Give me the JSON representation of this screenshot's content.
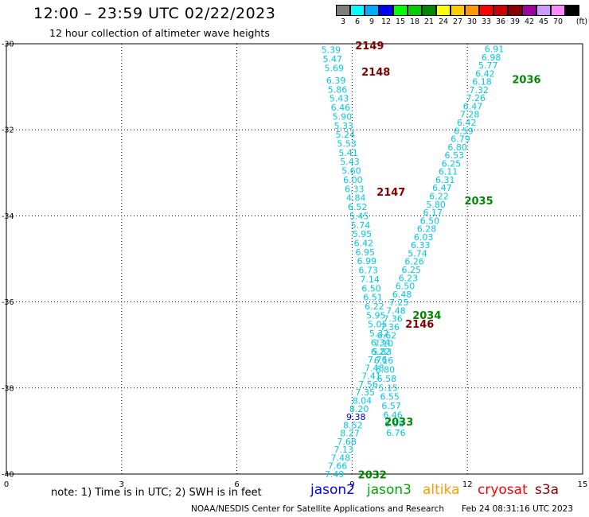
{
  "header": {
    "title": "12:00 – 23:59 UTC 02/22/2023",
    "subtitle": "12 hour collection of altimeter wave heights"
  },
  "legend": {
    "unit": "(ft)",
    "items": [
      {
        "label": "3",
        "color": "#7f7f7f"
      },
      {
        "label": "6",
        "color": "#00ffff"
      },
      {
        "label": "9",
        "color": "#00aaff"
      },
      {
        "label": "12",
        "color": "#0000ff"
      },
      {
        "label": "15",
        "color": "#00ff00"
      },
      {
        "label": "18",
        "color": "#00cc00"
      },
      {
        "label": "21",
        "color": "#008800"
      },
      {
        "label": "24",
        "color": "#ffff00"
      },
      {
        "label": "27",
        "color": "#ffcc00"
      },
      {
        "label": "30",
        "color": "#ff9900"
      },
      {
        "label": "33",
        "color": "#ff0000"
      },
      {
        "label": "36",
        "color": "#cc0000"
      },
      {
        "label": "39",
        "color": "#880000"
      },
      {
        "label": "42",
        "color": "#a000a0"
      },
      {
        "label": "45",
        "color": "#cc99ff"
      },
      {
        "label": "70",
        "color": "#ff88ff"
      },
      {
        "label": "",
        "color": "#000000"
      }
    ]
  },
  "colors": {
    "low_swh": "#00c8e6",
    "mid_swh": "#0000cc",
    "pass_label_green": "#008800",
    "pass_label_darkred": "#800000",
    "grid": "#000000"
  },
  "chart_data": {
    "type": "scatter",
    "title": "12:00 – 23:59 UTC 02/22/2023",
    "xlim": [
      0,
      15
    ],
    "ylim": [
      -40,
      -30
    ],
    "x_ticks": [
      "0",
      "3",
      "6",
      "9",
      "12",
      "15"
    ],
    "y_ticks": [
      "-30",
      "-32",
      "-34",
      "-36",
      "-38",
      "-40"
    ],
    "grid": true,
    "series": [
      {
        "name": "2149",
        "color": "#800000",
        "points": [
          {
            "x": 8.45,
            "y": -30.14,
            "v": "5.39"
          },
          {
            "x": 8.49,
            "y": -30.35,
            "v": "5.47"
          },
          {
            "x": 8.53,
            "y": -30.56,
            "v": "5.69"
          }
        ]
      },
      {
        "name": "2148",
        "color": "#800000",
        "points": [
          {
            "x": 8.58,
            "y": -30.85,
            "v": "6.39"
          },
          {
            "x": 8.62,
            "y": -31.06,
            "v": "5.86"
          },
          {
            "x": 8.66,
            "y": -31.27,
            "v": "5.43"
          },
          {
            "x": 8.7,
            "y": -31.48,
            "v": "6.46"
          },
          {
            "x": 8.74,
            "y": -31.69,
            "v": "5.90"
          },
          {
            "x": 8.78,
            "y": -31.9,
            "v": "5.33"
          },
          {
            "x": 8.82,
            "y": -32.11,
            "v": "5.24"
          },
          {
            "x": 8.86,
            "y": -32.32,
            "v": "5.53"
          },
          {
            "x": 8.9,
            "y": -32.53,
            "v": "5.41"
          },
          {
            "x": 8.94,
            "y": -32.74,
            "v": "5.43"
          },
          {
            "x": 8.98,
            "y": -32.95,
            "v": "5.60"
          },
          {
            "x": 9.02,
            "y": -33.16,
            "v": "6.00"
          },
          {
            "x": 9.06,
            "y": -33.37,
            "v": "6.33"
          },
          {
            "x": 9.1,
            "y": -33.58,
            "v": "4.84"
          }
        ]
      },
      {
        "name": "2147",
        "color": "#800000",
        "points": [
          {
            "x": 9.14,
            "y": -33.79,
            "v": "6.52"
          },
          {
            "x": 9.18,
            "y": -34.0,
            "v": "5.45"
          },
          {
            "x": 9.22,
            "y": -34.21,
            "v": "5.74"
          },
          {
            "x": 9.26,
            "y": -34.42,
            "v": "5.95"
          },
          {
            "x": 9.3,
            "y": -34.63,
            "v": "6.42"
          },
          {
            "x": 9.34,
            "y": -34.84,
            "v": "6.95"
          },
          {
            "x": 9.38,
            "y": -35.05,
            "v": "6.99"
          },
          {
            "x": 9.42,
            "y": -35.26,
            "v": "6.73"
          },
          {
            "x": 9.46,
            "y": -35.47,
            "v": "7.14"
          },
          {
            "x": 9.5,
            "y": -35.68,
            "v": "6.50"
          },
          {
            "x": 9.54,
            "y": -35.89,
            "v": "6.51"
          },
          {
            "x": 9.58,
            "y": -36.1,
            "v": "6.22"
          }
        ]
      },
      {
        "name": "2146",
        "color": "#800000",
        "points": [
          {
            "x": 9.62,
            "y": -36.31,
            "v": "5.95"
          },
          {
            "x": 9.66,
            "y": -36.52,
            "v": "5.05"
          },
          {
            "x": 9.7,
            "y": -36.73,
            "v": "5.32"
          },
          {
            "x": 9.74,
            "y": -36.94,
            "v": "6.34"
          },
          {
            "x": 9.78,
            "y": -37.15,
            "v": "5.83"
          },
          {
            "x": 9.82,
            "y": -37.36,
            "v": "6.16"
          },
          {
            "x": 9.86,
            "y": -37.57,
            "v": "6.80"
          },
          {
            "x": 9.9,
            "y": -37.78,
            "v": "6.58"
          },
          {
            "x": 9.94,
            "y": -37.99,
            "v": "5.15"
          },
          {
            "x": 9.98,
            "y": -38.2,
            "v": "6.55"
          },
          {
            "x": 10.02,
            "y": -38.41,
            "v": "6.57"
          },
          {
            "x": 10.06,
            "y": -38.62,
            "v": "6.46"
          },
          {
            "x": 10.1,
            "y": -38.83,
            "v": "6.98"
          },
          {
            "x": 10.14,
            "y": -39.04,
            "v": "6.76"
          }
        ]
      },
      {
        "name": "2036",
        "color": "#008800",
        "points": [
          {
            "x": 12.7,
            "y": -30.12,
            "v": "6.91"
          },
          {
            "x": 12.62,
            "y": -30.31,
            "v": "6.98"
          },
          {
            "x": 12.54,
            "y": -30.5,
            "v": "5.77"
          },
          {
            "x": 12.46,
            "y": -30.69,
            "v": "6.42"
          },
          {
            "x": 12.38,
            "y": -30.88,
            "v": "6.18"
          },
          {
            "x": 12.3,
            "y": -31.07,
            "v": "7.32"
          },
          {
            "x": 12.22,
            "y": -31.26,
            "v": "7.26"
          },
          {
            "x": 12.14,
            "y": -31.45,
            "v": "6.47"
          },
          {
            "x": 12.06,
            "y": -31.64,
            "v": "7.28"
          },
          {
            "x": 11.98,
            "y": -31.83,
            "v": "6.42"
          },
          {
            "x": 11.9,
            "y": -32.02,
            "v": "6.59"
          },
          {
            "x": 11.82,
            "y": -32.21,
            "v": "6.79"
          },
          {
            "x": 11.74,
            "y": -32.4,
            "v": "6.80"
          },
          {
            "x": 11.66,
            "y": -32.59,
            "v": "6.53"
          },
          {
            "x": 11.58,
            "y": -32.78,
            "v": "6.25"
          },
          {
            "x": 11.5,
            "y": -32.97,
            "v": "6.11"
          },
          {
            "x": 11.42,
            "y": -33.16,
            "v": "6.31"
          },
          {
            "x": 11.34,
            "y": -33.35,
            "v": "6.47"
          }
        ]
      },
      {
        "name": "2035",
        "color": "#008800",
        "points": [
          {
            "x": 11.26,
            "y": -33.54,
            "v": "6.22"
          },
          {
            "x": 11.18,
            "y": -33.73,
            "v": "5.80"
          },
          {
            "x": 11.1,
            "y": -33.92,
            "v": "6.17"
          },
          {
            "x": 11.02,
            "y": -34.11,
            "v": "6.50"
          },
          {
            "x": 10.94,
            "y": -34.3,
            "v": "6.28"
          },
          {
            "x": 10.86,
            "y": -34.49,
            "v": "6.03"
          },
          {
            "x": 10.78,
            "y": -34.68,
            "v": "6.33"
          },
          {
            "x": 10.7,
            "y": -34.87,
            "v": "5.74"
          },
          {
            "x": 10.62,
            "y": -35.06,
            "v": "6.26"
          },
          {
            "x": 10.54,
            "y": -35.25,
            "v": "6.25"
          },
          {
            "x": 10.46,
            "y": -35.44,
            "v": "6.23"
          },
          {
            "x": 10.38,
            "y": -35.63,
            "v": "6.50"
          },
          {
            "x": 10.3,
            "y": -35.82,
            "v": "6.48"
          },
          {
            "x": 10.22,
            "y": -36.01,
            "v": "7.25"
          }
        ]
      },
      {
        "name": "2034",
        "color": "#008800",
        "points": [
          {
            "x": 10.14,
            "y": -36.2,
            "v": "7.48"
          },
          {
            "x": 10.06,
            "y": -36.39,
            "v": "7.36"
          },
          {
            "x": 9.98,
            "y": -36.58,
            "v": "7.36"
          },
          {
            "x": 9.9,
            "y": -36.77,
            "v": "6.62"
          },
          {
            "x": 9.82,
            "y": -36.96,
            "v": "7.10"
          },
          {
            "x": 9.74,
            "y": -37.15,
            "v": "6.22"
          },
          {
            "x": 9.66,
            "y": -37.34,
            "v": "7.76"
          },
          {
            "x": 9.58,
            "y": -37.53,
            "v": "7.48"
          },
          {
            "x": 9.5,
            "y": -37.72,
            "v": "7.41"
          },
          {
            "x": 9.42,
            "y": -37.91,
            "v": "7.56"
          },
          {
            "x": 9.34,
            "y": -38.1,
            "v": "7.35"
          },
          {
            "x": 9.26,
            "y": -38.29,
            "v": "8.04"
          }
        ]
      },
      {
        "name": "2033",
        "color": "#008800",
        "points": [
          {
            "x": 9.18,
            "y": -38.48,
            "v": "8.20"
          },
          {
            "x": 9.1,
            "y": -38.67,
            "v": "9.38"
          },
          {
            "x": 9.02,
            "y": -38.86,
            "v": "8.52"
          },
          {
            "x": 8.94,
            "y": -39.05,
            "v": "8.27"
          },
          {
            "x": 8.86,
            "y": -39.24,
            "v": "7.68"
          },
          {
            "x": 8.78,
            "y": -39.43,
            "v": "7.13"
          },
          {
            "x": 8.7,
            "y": -39.62,
            "v": "7.48"
          }
        ]
      },
      {
        "name": "2032",
        "color": "#008800",
        "points": [
          {
            "x": 8.62,
            "y": -39.81,
            "v": "7.66"
          },
          {
            "x": 8.54,
            "y": -40.0,
            "v": "7.49"
          }
        ]
      }
    ]
  },
  "notes": {
    "note": "note:  1) Time is in UTC; 2) SWH is in feet",
    "satellites": [
      {
        "name": "jason2",
        "color": "#0000ff"
      },
      {
        "name": "jason3",
        "color": "#00aa00"
      },
      {
        "name": "altika",
        "color": "#ff9900"
      },
      {
        "name": "cryosat",
        "color": "#ff0000"
      },
      {
        "name": "s3a",
        "color": "#880000"
      }
    ],
    "footer": "NOAA/NESDIS Center for Satellite Applications and Research",
    "timestamp": "Feb 24 08:31:16 UTC 2023"
  }
}
